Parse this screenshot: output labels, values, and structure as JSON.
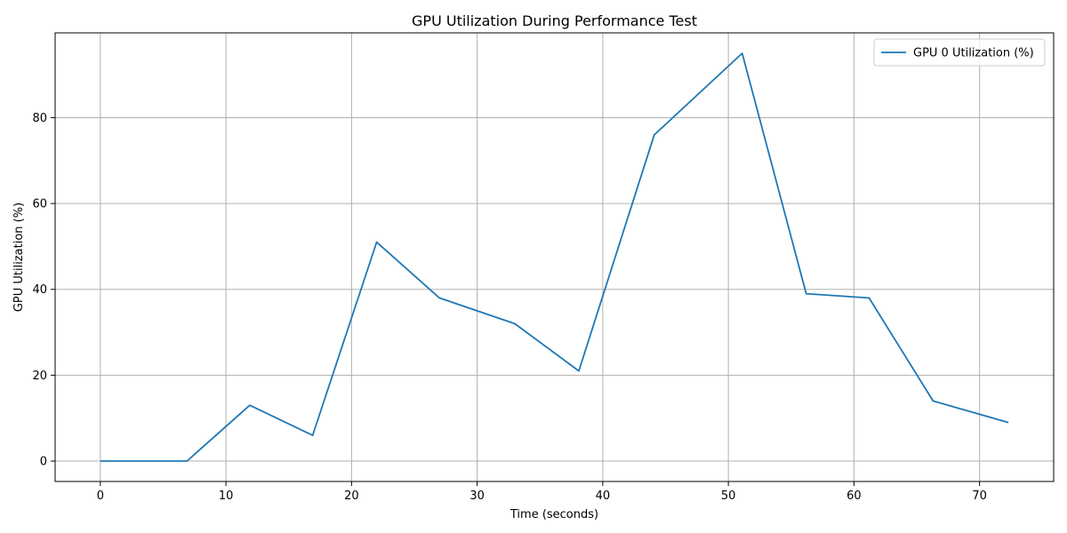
{
  "chart_data": {
    "type": "line",
    "title": "GPU Utilization During Performance Test",
    "xlabel": "Time (seconds)",
    "ylabel": "GPU Utilization (%)",
    "xlim": [
      -3.6,
      75.9
    ],
    "ylim": [
      -4.75,
      99.75
    ],
    "xticks": [
      0,
      10,
      20,
      30,
      40,
      50,
      60,
      70
    ],
    "yticks": [
      0,
      20,
      40,
      60,
      80
    ],
    "grid": true,
    "legend_position": "top-right",
    "series": [
      {
        "name": "GPU 0 Utilization (%)",
        "color": "#1f77b4",
        "x": [
          0,
          6.9,
          11.9,
          16.9,
          22.0,
          27.0,
          33.0,
          38.1,
          44.1,
          51.1,
          56.2,
          61.2,
          66.3,
          72.3
        ],
        "y": [
          0,
          0,
          13,
          6,
          51,
          38,
          32,
          21,
          76,
          95,
          39,
          38,
          14,
          9
        ]
      }
    ]
  }
}
